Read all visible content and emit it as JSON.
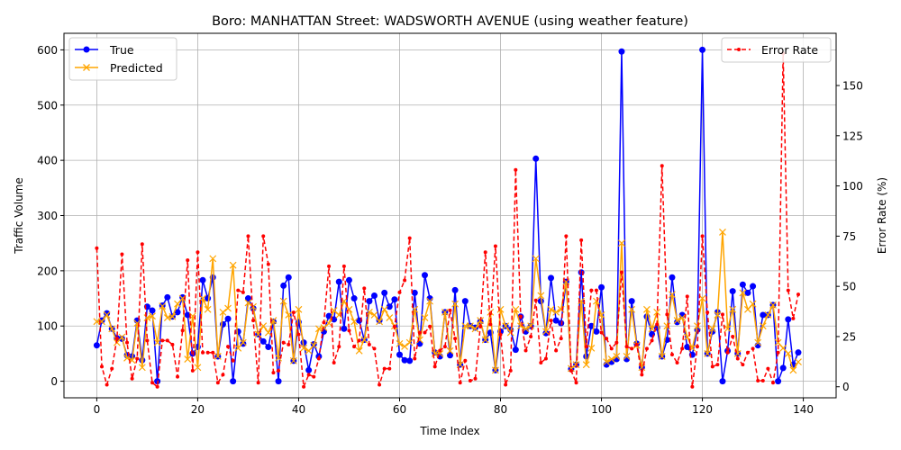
{
  "chart_data": {
    "type": "line",
    "title": "Boro: MANHATTAN Street: WADSWORTH AVENUE (using weather feature)",
    "xlabel": "Time Index",
    "ylabel": "Traffic Volume",
    "y2label": "Error Rate (%)",
    "xlim": [
      -6.5,
      146.5
    ],
    "ylim": [
      -30,
      630
    ],
    "y2lim": [
      -5.5,
      176
    ],
    "xticks": [
      0,
      20,
      40,
      60,
      80,
      100,
      120,
      140
    ],
    "yticks": [
      0,
      100,
      200,
      300,
      400,
      500,
      600
    ],
    "y2ticks": [
      0,
      25,
      50,
      75,
      100,
      125,
      150
    ],
    "grid": true,
    "legend_left_placement": "top-left",
    "legend_right_placement": "top-right",
    "series": [
      {
        "name": "True",
        "axis": "left",
        "color": "#0000ff",
        "marker": "circle",
        "values": [
          65,
          110,
          123,
          95,
          78,
          77,
          47,
          45,
          110,
          38,
          135,
          128,
          0,
          137,
          152,
          117,
          125,
          152,
          120,
          50,
          62,
          183,
          150,
          188,
          45,
          103,
          113,
          0,
          90,
          68,
          150,
          132,
          85,
          72,
          62,
          108,
          0,
          173,
          188,
          37,
          107,
          70,
          20,
          67,
          45,
          90,
          118,
          112,
          180,
          95,
          183,
          150,
          110,
          75,
          145,
          155,
          110,
          160,
          135,
          148,
          48,
          38,
          37,
          160,
          68,
          192,
          150,
          52,
          45,
          125,
          47,
          165,
          30,
          145,
          100,
          97,
          108,
          75,
          88,
          20,
          90,
          100,
          93,
          57,
          117,
          90,
          100,
          403,
          145,
          87,
          187,
          110,
          105,
          180,
          22,
          30,
          197,
          45,
          100,
          90,
          170,
          30,
          35,
          40,
          597,
          40,
          145,
          68,
          25,
          117,
          85,
          97,
          45,
          75,
          188,
          107,
          120,
          62,
          48,
          93,
          600,
          50,
          90,
          125,
          0,
          55,
          163,
          50,
          175,
          160,
          172,
          65,
          120,
          120,
          138,
          0,
          24,
          112,
          30,
          52
        ]
      },
      {
        "name": "Predicted",
        "axis": "left",
        "color": "#ffa500",
        "marker": "x",
        "values": [
          108,
          108,
          120,
          95,
          70,
          80,
          42,
          38,
          105,
          25,
          115,
          118,
          70,
          136,
          115,
          117,
          140,
          150,
          40,
          118,
          25,
          150,
          130,
          222,
          45,
          125,
          132,
          210,
          60,
          70,
          142,
          135,
          85,
          100,
          88,
          110,
          42,
          145,
          120,
          37,
          130,
          60,
          55,
          65,
          95,
          97,
          105,
          128,
          120,
          145,
          130,
          108,
          55,
          75,
          125,
          120,
          108,
          130,
          115,
          100,
          68,
          63,
          70,
          130,
          75,
          115,
          145,
          50,
          50,
          125,
          55,
          140,
          30,
          100,
          100,
          95,
          110,
          75,
          125,
          20,
          130,
          100,
          88,
          130,
          100,
          95,
          100,
          222,
          155,
          90,
          130,
          125,
          130,
          180,
          23,
          30,
          145,
          30,
          60,
          145,
          120,
          35,
          40,
          45,
          250,
          45,
          130,
          65,
          25,
          130,
          95,
          125,
          45,
          100,
          157,
          110,
          115,
          80,
          60,
          100,
          150,
          50,
          95,
          120,
          270,
          95,
          130,
          50,
          160,
          130,
          140,
          70,
          100,
          120,
          138,
          70,
          60,
          50,
          20,
          35
        ]
      },
      {
        "name": "Error Rate",
        "axis": "right",
        "color": "#ff0000",
        "marker": "dot",
        "dashed": true,
        "values": [
          69,
          10,
          1,
          9,
          24,
          66,
          22,
          4,
          14,
          71,
          23,
          2,
          0,
          23,
          23,
          21,
          5,
          28,
          63,
          8,
          67,
          17,
          17,
          17,
          2,
          6,
          20,
          13,
          48,
          47,
          75,
          33,
          2,
          75,
          61,
          7,
          8,
          22,
          21,
          37,
          26,
          0,
          6,
          5,
          14,
          32,
          60,
          12,
          20,
          60,
          28,
          20,
          23,
          49,
          21,
          19,
          1,
          9,
          9,
          30,
          47,
          53,
          74,
          14,
          27,
          27,
          30,
          10,
          18,
          20,
          38,
          24,
          2,
          13,
          3,
          4,
          30,
          67,
          31,
          70,
          26,
          1,
          8,
          108,
          35,
          18,
          25,
          43,
          12,
          14,
          33,
          18,
          24,
          75,
          8,
          2,
          73,
          20,
          48,
          48,
          27,
          24,
          19,
          22,
          57,
          20,
          19,
          21,
          6,
          19,
          23,
          31,
          110,
          36,
          16,
          12,
          19,
          45,
          0,
          20,
          75,
          37,
          10,
          11,
          36,
          17,
          25,
          14,
          11,
          17,
          19,
          3,
          3,
          9,
          2,
          17,
          166,
          48,
          34,
          46
        ]
      }
    ]
  }
}
